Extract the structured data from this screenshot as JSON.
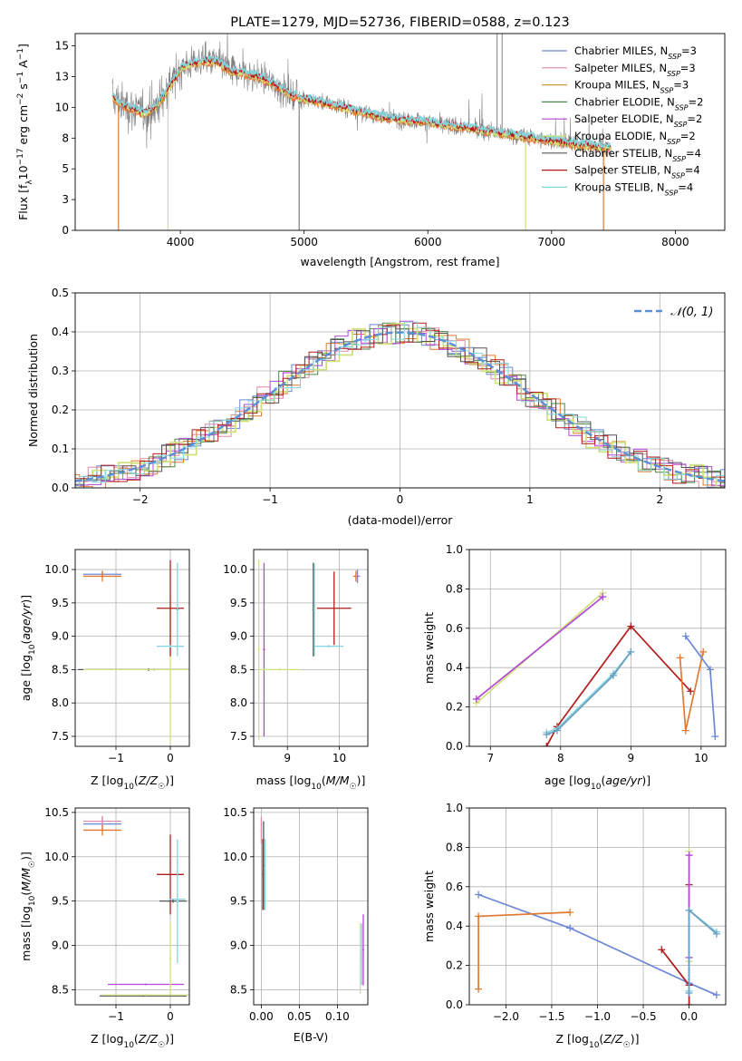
{
  "colors": {
    "Chabrier MILES": "#6b87d6",
    "Salpeter MILES": "#e38aa9",
    "Kroupa MILES": "#c79a3b",
    "Chabrier ELODIE": "#4b8a4b",
    "Salpeter ELODIE": "#b347d6",
    "Kroupa ELODIE": "#cfe27c",
    "Chabrier STELIB": "#555555",
    "Salpeter STELIB": "#b01c1c",
    "Kroupa STELIB": "#86d4dc",
    "orange": "#e07a32",
    "data_gray": "#808080",
    "gauss": "#5b8fd6"
  },
  "chart_data": [
    {
      "id": "spectrum",
      "type": "line",
      "title": "PLATE=1279, MJD=52736, FIBERID=0588, z=0.123",
      "xlabel": "wavelength [Angstrom, rest frame]",
      "ylabel": "Flux [f_λ10^-17 erg cm^-2 s^-1 A^-1]",
      "xlim": [
        3150,
        8400
      ],
      "ylim": [
        0,
        16
      ],
      "xticks": [
        4000,
        5000,
        6000,
        7000,
        8000
      ],
      "yticks": [
        0.0,
        2.5,
        5.0,
        7.5,
        10.0,
        12.5,
        15.0
      ],
      "legend_position": "top-right",
      "legend": [
        {
          "label": "Chabrier MILES, N",
          "sub": "SSP",
          "tail": "=3",
          "color": "#6b87d6"
        },
        {
          "label": "Salpeter MILES, N",
          "sub": "SSP",
          "tail": "=3",
          "color": "#e38aa9"
        },
        {
          "label": "Kroupa MILES, N",
          "sub": "SSP",
          "tail": "=3",
          "color": "#c79a3b"
        },
        {
          "label": "Chabrier ELODIE, N",
          "sub": "SSP",
          "tail": "=2",
          "color": "#4b8a4b"
        },
        {
          "label": "Salpeter ELODIE, N",
          "sub": "SSP",
          "tail": "=2",
          "color": "#b347d6"
        },
        {
          "label": "Kroupa ELODIE, N",
          "sub": "SSP",
          "tail": "=2",
          "color": "#cfe27c"
        },
        {
          "label": "Chabrier STELIB, N",
          "sub": "SSP",
          "tail": "=4",
          "color": "#555555"
        },
        {
          "label": "Salpeter STELIB, N",
          "sub": "SSP",
          "tail": "=4",
          "color": "#b01c1c"
        },
        {
          "label": "Kroupa STELIB, N",
          "sub": "SSP",
          "tail": "=4",
          "color": "#86d4dc"
        }
      ],
      "model_continuum": {
        "x": [
          3450,
          3550,
          3650,
          3700,
          3800,
          3850,
          3900,
          3950,
          4000,
          4100,
          4200,
          4300,
          4400,
          4500,
          4600,
          4700,
          4800,
          4900,
          5000,
          5200,
          5400,
          5600,
          5800,
          6000,
          6200,
          6400,
          6600,
          6800,
          7000,
          7200,
          7400,
          7600,
          7800,
          8000,
          8200
        ],
        "y": [
          10.8,
          10.1,
          9.8,
          9.5,
          10.0,
          10.8,
          11.5,
          12.2,
          13.2,
          13.6,
          13.8,
          13.7,
          13.0,
          12.8,
          12.6,
          12.2,
          11.6,
          11.0,
          10.7,
          10.3,
          9.8,
          9.3,
          9.0,
          8.8,
          8.5,
          8.2,
          7.9,
          7.6,
          7.3,
          7.0,
          6.8,
          6.6,
          6.4,
          6.3,
          6.1
        ]
      },
      "annotations": [
        {
          "type": "drop",
          "x": 3500,
          "color": "#e07a32"
        },
        {
          "type": "drop",
          "x": 3900,
          "color": "#cfe27c"
        },
        {
          "type": "drop",
          "x": 4960,
          "color": "#808080"
        },
        {
          "type": "drop",
          "x": 6790,
          "color": "#cfe27c"
        },
        {
          "type": "drop",
          "x": 7420,
          "color": "#e07a32"
        },
        {
          "type": "spike",
          "x": 6560,
          "color": "#808080"
        },
        {
          "type": "spike",
          "x": 6600,
          "color": "#808080"
        }
      ]
    },
    {
      "id": "residuals",
      "type": "histogram",
      "xlabel": "(data-model)/error",
      "ylabel": "Normed distribution",
      "xlim": [
        -2.5,
        2.5
      ],
      "ylim": [
        0,
        0.5
      ],
      "xticks": [
        -2,
        -1,
        0,
        1,
        2
      ],
      "yticks": [
        0.0,
        0.1,
        0.2,
        0.3,
        0.4,
        0.5
      ],
      "legend_position": "top-right",
      "legend": [
        {
          "label": "N(0,1)",
          "color": "#5b8fd6",
          "style": "dashed"
        }
      ],
      "bin_width": 0.1
    },
    {
      "id": "age_vs_Z",
      "type": "errorbar",
      "xlabel": "Z [log10(Z/Z☉)]",
      "ylabel": "age [log10(age/yr)]",
      "xlim": [
        -1.75,
        0.35
      ],
      "ylim": [
        7.35,
        10.3
      ],
      "xticks": [
        -1,
        0
      ],
      "yticks": [
        7.5,
        8.0,
        8.5,
        9.0,
        9.5,
        10.0
      ],
      "points": [
        {
          "x": -1.25,
          "xerr": 0.35,
          "y": 9.93,
          "yerr": 0.05,
          "color": "#6b87d6"
        },
        {
          "x": -1.25,
          "xerr": 0.35,
          "y": 9.9,
          "yerr": 0.08,
          "color": "#e07a32"
        },
        {
          "x": -0.4,
          "xerr": 1.3,
          "y": 8.5,
          "yerr": 0.02,
          "color": "#555555"
        },
        {
          "x": -0.3,
          "xerr": 1.25,
          "y": 8.5,
          "yerr": 0.02,
          "color": "#b347d6"
        },
        {
          "x": -0.3,
          "xerr": 1.3,
          "y": 8.5,
          "yerr": 0.02,
          "color": "#cfe27c"
        },
        {
          "x": 0.0,
          "xerr": 0.02,
          "y": 8.5,
          "yerr": 1.1,
          "color": "#cfe27c"
        },
        {
          "x": 0.0,
          "xerr": 0.25,
          "y": 9.42,
          "yerr": 0.72,
          "color": "#b01c1c"
        },
        {
          "x": 0.0,
          "xerr": 0.25,
          "y": 8.85,
          "yerr": 0.02,
          "color": "#86d4dc"
        },
        {
          "x": 0.13,
          "xerr": 0.03,
          "y": 9.4,
          "yerr": 0.7,
          "color": "#86d4dc"
        }
      ]
    },
    {
      "id": "age_vs_mass",
      "type": "errorbar",
      "xlabel": "mass [log10(M/M☉)]",
      "ylabel": "",
      "xlim": [
        8.35,
        10.55
      ],
      "ylim": [
        7.35,
        10.3
      ],
      "xticks": [
        9,
        10
      ],
      "yticks": [
        7.5,
        8.0,
        8.5,
        9.0,
        9.5,
        10.0
      ],
      "points": [
        {
          "x": 8.45,
          "xerr": 0.02,
          "y": 8.8,
          "yerr": 1.35,
          "color": "#cfe27c"
        },
        {
          "x": 8.55,
          "xerr": 0.02,
          "y": 8.8,
          "yerr": 1.3,
          "color": "#b347d6"
        },
        {
          "x": 8.85,
          "xerr": 0.4,
          "y": 8.5,
          "yerr": 0.02,
          "color": "#cfe27c"
        },
        {
          "x": 9.5,
          "xerr": 0.02,
          "y": 9.4,
          "yerr": 0.7,
          "color": "#555555"
        },
        {
          "x": 9.52,
          "xerr": 0.02,
          "y": 9.4,
          "yerr": 0.7,
          "color": "#86d4dc"
        },
        {
          "x": 9.8,
          "xerr": 0.28,
          "y": 8.85,
          "yerr": 0.02,
          "color": "#86d4dc"
        },
        {
          "x": 9.9,
          "xerr": 0.33,
          "y": 9.42,
          "yerr": 0.55,
          "color": "#b01c1c"
        },
        {
          "x": 10.35,
          "xerr": 0.05,
          "y": 9.9,
          "yerr": 0.1,
          "color": "#6b87d6"
        },
        {
          "x": 10.32,
          "xerr": 0.05,
          "y": 9.9,
          "yerr": 0.08,
          "color": "#e07a32"
        }
      ]
    },
    {
      "id": "weight_vs_age",
      "type": "line",
      "xlabel": "age [log10(age/yr)]",
      "ylabel": "mass weight",
      "xlim": [
        6.7,
        10.35
      ],
      "ylim": [
        0,
        1.0
      ],
      "xticks": [
        7,
        8,
        9,
        10
      ],
      "yticks": [
        0.0,
        0.2,
        0.4,
        0.6,
        0.8,
        1.0
      ],
      "series": [
        {
          "color": "#cfe27c",
          "x": [
            6.8,
            8.6
          ],
          "y": [
            0.22,
            0.78
          ]
        },
        {
          "color": "#b347d6",
          "x": [
            6.8,
            8.6
          ],
          "y": [
            0.24,
            0.76
          ]
        },
        {
          "color": "#b01c1c",
          "x": [
            7.8,
            7.95,
            9.0,
            9.85
          ],
          "y": [
            0.0,
            0.1,
            0.61,
            0.28
          ]
        },
        {
          "color": "#86d4dc",
          "x": [
            7.8,
            7.95,
            8.75,
            9.0
          ],
          "y": [
            0.07,
            0.09,
            0.37,
            0.48
          ]
        },
        {
          "color": "#6a9fbf",
          "x": [
            7.8,
            7.95,
            8.75,
            9.0
          ],
          "y": [
            0.06,
            0.08,
            0.36,
            0.48
          ]
        },
        {
          "color": "#e07a32",
          "x": [
            9.7,
            9.78,
            10.03
          ],
          "y": [
            0.45,
            0.08,
            0.48
          ]
        },
        {
          "color": "#6b87d6",
          "x": [
            9.78,
            10.13,
            10.2
          ],
          "y": [
            0.56,
            0.39,
            0.05
          ]
        }
      ]
    },
    {
      "id": "mass_vs_Z",
      "type": "errorbar",
      "xlabel": "Z [log10(Z/Z☉)]",
      "ylabel": "mass [log10(M/M☉)]",
      "xlim": [
        -1.75,
        0.35
      ],
      "ylim": [
        8.33,
        10.55
      ],
      "xticks": [
        -1,
        0
      ],
      "yticks": [
        8.5,
        9.0,
        9.5,
        10.0,
        10.5
      ],
      "points": [
        {
          "x": -1.25,
          "xerr": 0.35,
          "y": 10.37,
          "yerr": 0.08,
          "color": "#6b87d6"
        },
        {
          "x": -1.25,
          "xerr": 0.35,
          "y": 10.4,
          "yerr": 0.06,
          "color": "#e38aa9"
        },
        {
          "x": -1.25,
          "xerr": 0.35,
          "y": 10.3,
          "yerr": 0.06,
          "color": "#e07a32"
        },
        {
          "x": -0.45,
          "xerr": 0.7,
          "y": 8.56,
          "yerr": 0.01,
          "color": "#b347d6"
        },
        {
          "x": -0.5,
          "xerr": 0.8,
          "y": 8.43,
          "yerr": 0.01,
          "color": "#555555"
        },
        {
          "x": -0.45,
          "xerr": 0.8,
          "y": 8.44,
          "yerr": 0.01,
          "color": "#cfe27c"
        },
        {
          "x": 0.0,
          "xerr": 0.02,
          "y": 8.85,
          "yerr": 0.4,
          "color": "#cfe27c"
        },
        {
          "x": 0.0,
          "xerr": 0.25,
          "y": 9.8,
          "yerr": 0.45,
          "color": "#b01c1c"
        },
        {
          "x": 0.05,
          "xerr": 0.25,
          "y": 9.5,
          "yerr": 0.02,
          "color": "#555555"
        },
        {
          "x": 0.13,
          "xerr": 0.02,
          "y": 9.5,
          "yerr": 0.7,
          "color": "#86d4dc"
        },
        {
          "x": 0.13,
          "xerr": 0.15,
          "y": 9.52,
          "yerr": 0.01,
          "color": "#86d4dc"
        }
      ]
    },
    {
      "id": "mass_vs_EBV",
      "type": "errorbar",
      "xlabel": "E(B-V)",
      "ylabel": "",
      "xlim": [
        -0.01,
        0.14
      ],
      "ylim": [
        8.33,
        10.55
      ],
      "xticks": [
        0.0,
        0.05,
        0.1
      ],
      "yticks": [
        8.5,
        9.0,
        9.5,
        10.0,
        10.5
      ],
      "points": [
        {
          "x": 0.0,
          "xerr": 0.001,
          "y": 10.3,
          "yerr": 0.15,
          "color": "#e38aa9"
        },
        {
          "x": 0.002,
          "xerr": 0.001,
          "y": 9.8,
          "yerr": 0.4,
          "color": "#b01c1c"
        },
        {
          "x": 0.003,
          "xerr": 0.001,
          "y": 9.9,
          "yerr": 0.5,
          "color": "#555555"
        },
        {
          "x": 0.005,
          "xerr": 0.001,
          "y": 9.8,
          "yerr": 0.4,
          "color": "#86d4dc"
        },
        {
          "x": 0.13,
          "xerr": 0.001,
          "y": 8.85,
          "yerr": 0.4,
          "color": "#cfe27c"
        },
        {
          "x": 0.132,
          "xerr": 0.001,
          "y": 8.9,
          "yerr": 0.35,
          "color": "#86d4dc"
        },
        {
          "x": 0.134,
          "xerr": 0.001,
          "y": 8.95,
          "yerr": 0.4,
          "color": "#b347d6"
        }
      ]
    },
    {
      "id": "weight_vs_Z",
      "type": "line",
      "xlabel": "Z [log10(Z/Z☉)]",
      "ylabel": "mass weight",
      "xlim": [
        -2.4,
        0.4
      ],
      "ylim": [
        0,
        1.0
      ],
      "xticks": [
        -2.0,
        -1.5,
        -1.0,
        -0.5,
        0.0
      ],
      "yticks": [
        0.0,
        0.2,
        0.4,
        0.6,
        0.8,
        1.0
      ],
      "series": [
        {
          "color": "#6b87d6",
          "x": [
            -2.3,
            -1.3,
            0.0,
            0.3
          ],
          "y": [
            0.56,
            0.39,
            0.11,
            0.05
          ]
        },
        {
          "color": "#e07a32",
          "x": [
            -2.3,
            -2.3,
            -1.3
          ],
          "y": [
            0.08,
            0.45,
            0.47
          ]
        },
        {
          "color": "#b01c1c",
          "x": [
            -0.3,
            0.0,
            0.0,
            0.0
          ],
          "y": [
            0.28,
            0.1,
            0.0,
            0.61
          ]
        },
        {
          "color": "#cfe27c",
          "x": [
            0.0,
            0.0
          ],
          "y": [
            0.22,
            0.78
          ]
        },
        {
          "color": "#b347d6",
          "x": [
            0.0,
            0.0
          ],
          "y": [
            0.24,
            0.76
          ]
        },
        {
          "color": "#86d4dc",
          "x": [
            0.0,
            0.0,
            0.3
          ],
          "y": [
            0.07,
            0.48,
            0.37
          ]
        },
        {
          "color": "#6a9fbf",
          "x": [
            0.0,
            0.0,
            0.3
          ],
          "y": [
            0.06,
            0.48,
            0.36
          ]
        }
      ]
    }
  ]
}
